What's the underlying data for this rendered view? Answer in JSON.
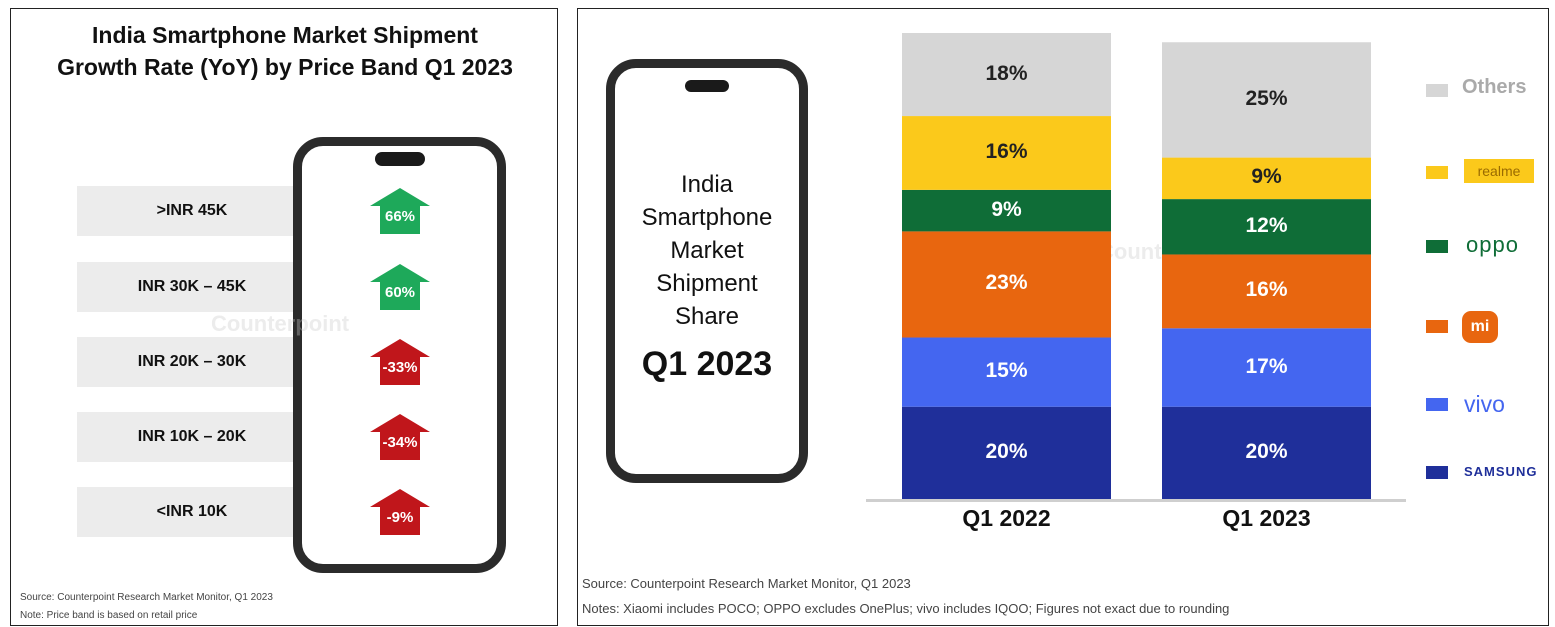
{
  "left": {
    "title_line1": "India Smartphone Market Shipment",
    "title_line2": "Growth Rate (YoY) by Price Band Q1 2023",
    "watermark": "Counterpoint",
    "source": "Source: Counterpoint Research Market Monitor, Q1 2023",
    "note": "Note: Price band is based on retail price"
  },
  "right": {
    "phone_title": [
      "India",
      "Smartphone",
      "Market",
      "Shipment",
      "Share"
    ],
    "phone_period": "Q1 2023",
    "watermark": "Counterpoint",
    "source": "Source: Counterpoint Research Market Monitor, Q1 2023",
    "notes": "Notes: Xiaomi includes POCO; OPPO excludes OnePlus; vivo includes IQOO; Figures not exact due to rounding"
  },
  "colors": {
    "up": "#1ea95a",
    "down": "#c0161b",
    "Samsung": "#1f2f9a",
    "vivo": "#4466f0",
    "Xiaomi": "#e8660f",
    "OPPO": "#0f6d37",
    "realme": "#fbc91b",
    "Others": "#d6d6d6"
  },
  "chart_data": [
    {
      "type": "bar",
      "orientation": "horizontal",
      "title": "India Smartphone Market Shipment Growth Rate (YoY) by Price Band Q1 2023",
      "categories": [
        ">INR 45K",
        "INR 30K – 45K",
        "INR 20K – 30K",
        "INR 10K – 20K",
        "<INR 10K"
      ],
      "values": [
        66,
        60,
        -33,
        -34,
        -9
      ],
      "labels": [
        "66%",
        "60%",
        "-33%",
        "-34%",
        "-9%"
      ],
      "unit": "%"
    },
    {
      "type": "bar",
      "stacked": true,
      "title": "India Smartphone Market Shipment Share Q1 2023",
      "categories": [
        "Q1 2022",
        "Q1 2023"
      ],
      "series": [
        {
          "name": "SAMSUNG",
          "key": "Samsung",
          "values": [
            20,
            20
          ],
          "labels": [
            "20%",
            "20%"
          ]
        },
        {
          "name": "vivo",
          "key": "vivo",
          "values": [
            15,
            17
          ],
          "labels": [
            "15%",
            "17%"
          ]
        },
        {
          "name": "mi",
          "key": "Xiaomi",
          "values": [
            23,
            16
          ],
          "labels": [
            "23%",
            "16%"
          ]
        },
        {
          "name": "oppo",
          "key": "OPPO",
          "values": [
            9,
            12
          ],
          "labels": [
            "9%",
            "12%"
          ]
        },
        {
          "name": "realme",
          "key": "realme",
          "values": [
            16,
            9
          ],
          "labels": [
            "16%",
            "9%"
          ]
        },
        {
          "name": "Others",
          "key": "Others",
          "values": [
            18,
            25
          ],
          "labels": [
            "18%",
            "25%"
          ]
        }
      ],
      "unit": "%",
      "ylim": [
        0,
        101
      ]
    }
  ]
}
